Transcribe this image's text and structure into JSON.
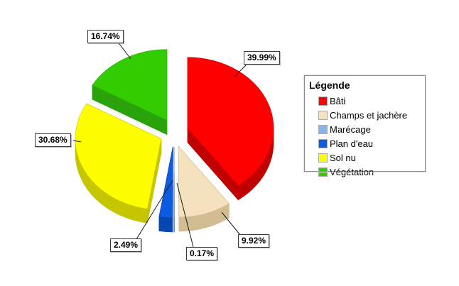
{
  "chart_data": {
    "type": "pie",
    "style": "3d-exploded",
    "unit": "%",
    "start_angle_deg": 0,
    "direction": "clockwise",
    "total": 100,
    "series": [
      {
        "key": "bati",
        "label": "Bâti",
        "value": 39.99,
        "pct_label": "39.99%",
        "color": "#fe0000",
        "side_color": "#c00000"
      },
      {
        "key": "champs-et-jachere",
        "label": "Champs et jachère",
        "value": 9.92,
        "pct_label": "9.92%",
        "color": "#f5e1bd",
        "side_color": "#d2bc92"
      },
      {
        "key": "marecage",
        "label": "Marécage",
        "value": 0.17,
        "pct_label": "0.17%",
        "color": "#88b5f2",
        "side_color": "#6b93cc"
      },
      {
        "key": "plan-deau",
        "label": "Plan d'eau",
        "value": 2.49,
        "pct_label": "2.49%",
        "color": "#0d5be1",
        "side_color": "#0a46b2"
      },
      {
        "key": "sol-nu",
        "label": "Sol nu",
        "value": 30.68,
        "pct_label": "30.68%",
        "color": "#fefe00",
        "side_color": "#c6c600"
      },
      {
        "key": "vegetation",
        "label": "Végétation",
        "value": 16.74,
        "pct_label": "16.74%",
        "color": "#33cc00",
        "side_color": "#29a309"
      }
    ],
    "legend": {
      "title": "Légende",
      "position": "right"
    },
    "background_color": "#ffffff",
    "callout_box_color": "#ffffff",
    "callout_border_color": "#3c3c3c"
  }
}
